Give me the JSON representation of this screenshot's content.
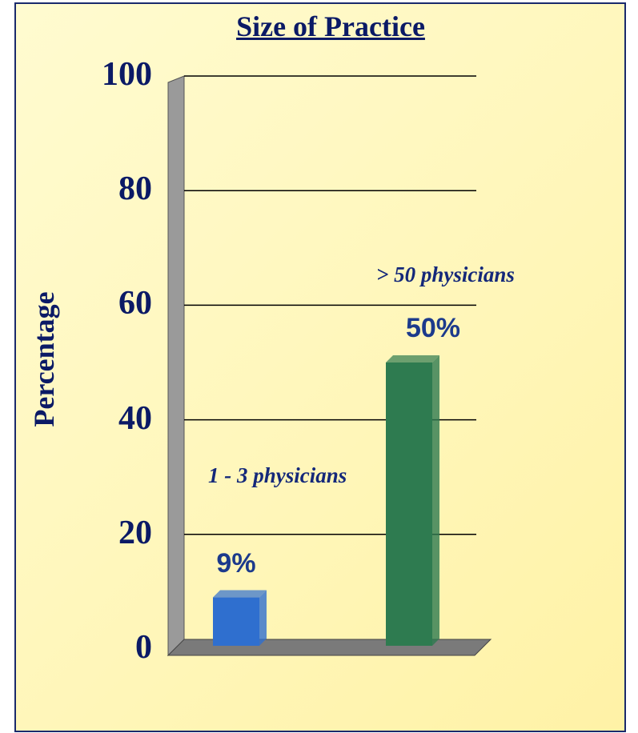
{
  "chart_data": {
    "type": "bar",
    "title": "Size of Practice",
    "y_label": "Percentage",
    "categories": [
      "1 - 3 physicians",
      "> 50 physicians"
    ],
    "values": [
      9,
      50
    ],
    "value_labels": [
      "9%",
      "50%"
    ],
    "colors": [
      "#2f6fcf",
      "#2e7b50"
    ],
    "ylim": [
      0,
      100
    ],
    "yticks": [
      0,
      20,
      40,
      60,
      80,
      100
    ],
    "grid": true
  }
}
